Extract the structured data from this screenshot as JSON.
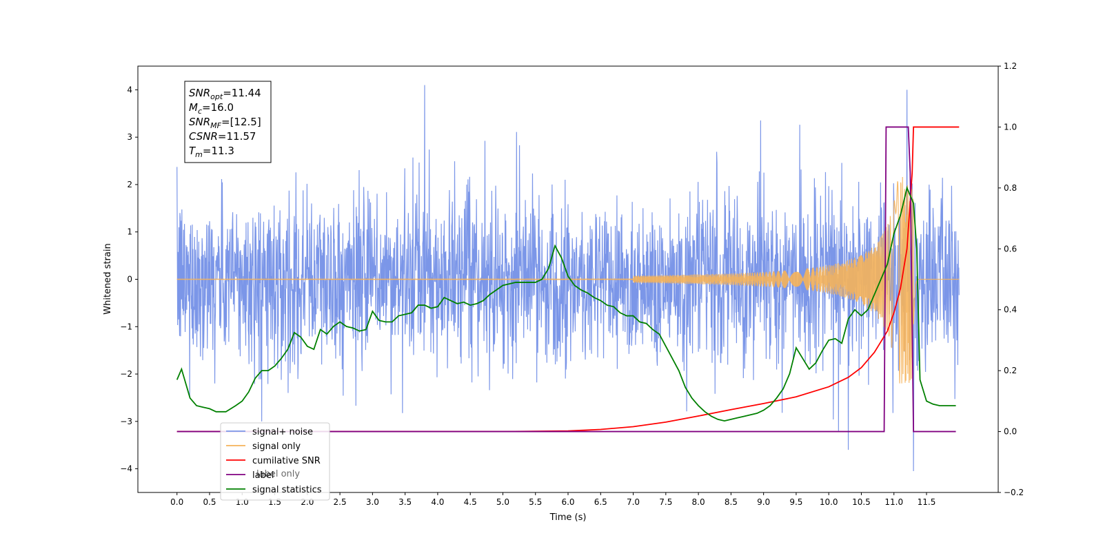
{
  "chart_data": {
    "type": "line",
    "xlabel": "Time (s)",
    "ylabel_left": "Whitened strain",
    "ylabel_right": "",
    "xlim": [
      -0.6,
      12.6
    ],
    "ylim_left": [
      -4.5,
      4.5
    ],
    "ylim_right": [
      -0.2,
      1.2
    ],
    "x_ticks": [
      0.0,
      0.5,
      1.0,
      1.5,
      2.0,
      2.5,
      3.0,
      3.5,
      4.0,
      4.5,
      5.0,
      5.5,
      6.0,
      6.5,
      7.0,
      7.5,
      8.0,
      8.5,
      9.0,
      9.5,
      10.0,
      10.5,
      11.0,
      11.5
    ],
    "y_ticks_left": [
      -4,
      -3,
      -2,
      -1,
      0,
      1,
      2,
      3,
      4
    ],
    "y_ticks_right": [
      -0.2,
      0.0,
      0.2,
      0.4,
      0.6,
      0.8,
      1.0,
      1.2
    ],
    "grid": false,
    "legend_position": "lower-left",
    "info_box": {
      "lines": [
        {
          "main": "SNR",
          "sub": "opt",
          "value": "=11.44"
        },
        {
          "main": "M",
          "sub": "c",
          "value": "=16.0"
        },
        {
          "main": "SNR",
          "sub": "MF",
          "value": "=[12.5]"
        },
        {
          "main": "CSNR",
          "sub": "",
          "value": "=11.57"
        },
        {
          "main": "T",
          "sub": "m",
          "value": "=11.3"
        }
      ]
    },
    "series": [
      {
        "name": "signal+ noise",
        "color": "#7b96e8",
        "axis": "left",
        "style": "noise",
        "x_range": [
          0.0,
          12.0
        ],
        "std": 0.9,
        "peaks": [
          [
            3.8,
            4.1
          ],
          [
            11.2,
            4.0
          ],
          [
            11.3,
            -4.05
          ],
          [
            1.3,
            -3.0
          ],
          [
            10.3,
            -3.6
          ],
          [
            10.15,
            -3.2
          ]
        ]
      },
      {
        "name": "signal only",
        "color": "#f5b25a",
        "axis": "left",
        "style": "chirp",
        "x_range": [
          0.0,
          12.0
        ],
        "merger_time": 11.3
      },
      {
        "name": "cumilative SNR",
        "color": "#ff0000",
        "axis": "right",
        "x": [
          0.0,
          5.0,
          6.0,
          6.5,
          7.0,
          7.5,
          8.0,
          8.5,
          9.0,
          9.5,
          10.0,
          10.3,
          10.5,
          10.7,
          10.9,
          11.0,
          11.1,
          11.2,
          11.28,
          11.3,
          12.0
        ],
        "values": [
          0.0,
          0.0,
          0.002,
          0.007,
          0.016,
          0.031,
          0.051,
          0.072,
          0.092,
          0.114,
          0.147,
          0.178,
          0.21,
          0.26,
          0.33,
          0.39,
          0.47,
          0.6,
          0.85,
          1.0,
          1.0
        ]
      },
      {
        "name": "label",
        "color": "#800080",
        "axis": "right",
        "x": [
          0.0,
          10.85,
          10.88,
          11.22,
          11.25,
          11.3,
          11.32,
          11.95
        ],
        "values": [
          0.0,
          0.0,
          1.0,
          1.0,
          0.85,
          0.0,
          0.0,
          0.0
        ]
      },
      {
        "name": "label only",
        "color": "#cccccc",
        "axis": "right",
        "hidden": true,
        "x": [],
        "values": []
      },
      {
        "name": "signal statistics",
        "color": "#008000",
        "axis": "right",
        "x": [
          0.0,
          0.07,
          0.2,
          0.3,
          0.4,
          0.5,
          0.6,
          0.75,
          0.9,
          1.0,
          1.1,
          1.2,
          1.3,
          1.4,
          1.5,
          1.6,
          1.7,
          1.8,
          1.9,
          2.0,
          2.1,
          2.2,
          2.3,
          2.4,
          2.5,
          2.6,
          2.7,
          2.8,
          2.9,
          3.0,
          3.1,
          3.2,
          3.3,
          3.4,
          3.5,
          3.6,
          3.7,
          3.8,
          3.9,
          4.0,
          4.1,
          4.2,
          4.3,
          4.4,
          4.5,
          4.6,
          4.7,
          4.8,
          4.9,
          5.0,
          5.1,
          5.2,
          5.3,
          5.4,
          5.5,
          5.6,
          5.7,
          5.8,
          5.9,
          6.0,
          6.1,
          6.2,
          6.3,
          6.4,
          6.5,
          6.6,
          6.7,
          6.8,
          6.9,
          7.0,
          7.1,
          7.2,
          7.3,
          7.4,
          7.5,
          7.6,
          7.7,
          7.8,
          7.9,
          8.0,
          8.1,
          8.2,
          8.3,
          8.4,
          8.5,
          8.6,
          8.7,
          8.8,
          8.9,
          9.0,
          9.1,
          9.2,
          9.3,
          9.4,
          9.5,
          9.6,
          9.7,
          9.8,
          9.9,
          10.0,
          10.1,
          10.2,
          10.3,
          10.4,
          10.5,
          10.6,
          10.7,
          10.8,
          10.9,
          11.0,
          11.1,
          11.2,
          11.3,
          11.35,
          11.4,
          11.5,
          11.6,
          11.7,
          11.8,
          11.95
        ],
        "values": [
          0.17,
          0.205,
          0.11,
          0.085,
          0.08,
          0.075,
          0.065,
          0.065,
          0.085,
          0.1,
          0.13,
          0.175,
          0.2,
          0.2,
          0.215,
          0.24,
          0.27,
          0.325,
          0.31,
          0.28,
          0.27,
          0.335,
          0.32,
          0.345,
          0.36,
          0.345,
          0.34,
          0.33,
          0.335,
          0.395,
          0.365,
          0.36,
          0.36,
          0.38,
          0.385,
          0.39,
          0.415,
          0.415,
          0.405,
          0.41,
          0.44,
          0.43,
          0.42,
          0.425,
          0.415,
          0.42,
          0.43,
          0.45,
          0.465,
          0.48,
          0.485,
          0.49,
          0.49,
          0.49,
          0.49,
          0.5,
          0.535,
          0.61,
          0.57,
          0.51,
          0.48,
          0.465,
          0.455,
          0.44,
          0.43,
          0.415,
          0.41,
          0.39,
          0.38,
          0.38,
          0.36,
          0.355,
          0.335,
          0.32,
          0.28,
          0.24,
          0.2,
          0.145,
          0.11,
          0.085,
          0.065,
          0.05,
          0.04,
          0.035,
          0.04,
          0.045,
          0.05,
          0.055,
          0.06,
          0.07,
          0.085,
          0.11,
          0.14,
          0.19,
          0.275,
          0.24,
          0.205,
          0.225,
          0.265,
          0.3,
          0.305,
          0.29,
          0.37,
          0.4,
          0.38,
          0.4,
          0.45,
          0.5,
          0.55,
          0.65,
          0.71,
          0.8,
          0.75,
          0.6,
          0.17,
          0.1,
          0.09,
          0.085,
          0.085,
          0.085
        ]
      }
    ]
  }
}
